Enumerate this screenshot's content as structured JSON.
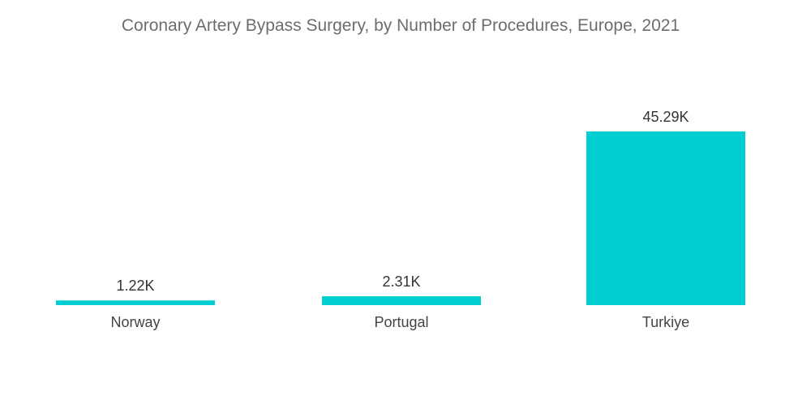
{
  "chart_data": {
    "type": "bar",
    "title": "Coronary Artery Bypass Surgery, by Number of Procedures, Europe, 2021",
    "xlabel": "",
    "ylabel": "",
    "categories": [
      "Norway",
      "Portugal",
      "Turkiye"
    ],
    "values": [
      1220,
      2310,
      45290
    ],
    "value_labels": [
      "1.22K",
      "2.31K",
      "45.29K"
    ],
    "ylim": [
      0,
      45290
    ],
    "grid": false,
    "legend": "none",
    "bar_color": "#00ced1"
  }
}
